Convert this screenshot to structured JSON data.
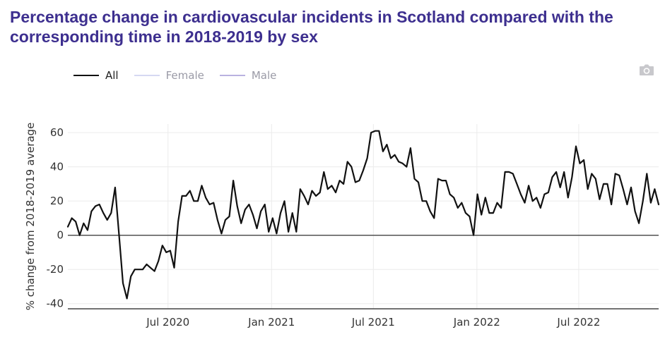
{
  "title": "Percentage change in cardiovascular incidents in Scotland compared with the corresponding time in 2018-2019 by sex",
  "legend": [
    {
      "label": "All",
      "color": "#111111",
      "active": true
    },
    {
      "label": "Female",
      "color": "#d6d8f2",
      "active": false
    },
    {
      "label": "Male",
      "color": "#b9b2e0",
      "active": false
    }
  ],
  "toolbar": {
    "camera_icon": "camera-icon"
  },
  "chart_data": {
    "type": "line",
    "title": "Percentage change in cardiovascular incidents in Scotland compared with the corresponding time in 2018-2019 by sex",
    "ylabel": "% change from 2018-2019 average",
    "xlabel": "",
    "ylim": [
      -43,
      65
    ],
    "xlim": [
      "2020-01-05",
      "2022-11-20"
    ],
    "grid": true,
    "legend_position": "top-left",
    "x_ticks": [
      {
        "date": "2020-07-01",
        "label": "Jul 2020"
      },
      {
        "date": "2021-01-01",
        "label": "Jan 2021"
      },
      {
        "date": "2021-07-01",
        "label": "Jul 2021"
      },
      {
        "date": "2022-01-01",
        "label": "Jan 2022"
      },
      {
        "date": "2022-07-01",
        "label": "Jul 2022"
      }
    ],
    "y_ticks": [
      -40,
      -20,
      0,
      20,
      40,
      60
    ],
    "series": [
      {
        "name": "All",
        "color": "#111111",
        "points": [
          [
            "2020-01-05",
            5
          ],
          [
            "2020-01-12",
            10
          ],
          [
            "2020-01-19",
            8
          ],
          [
            "2020-01-26",
            0
          ],
          [
            "2020-02-02",
            7
          ],
          [
            "2020-02-09",
            3
          ],
          [
            "2020-02-16",
            14
          ],
          [
            "2020-02-23",
            17
          ],
          [
            "2020-03-01",
            18
          ],
          [
            "2020-03-08",
            13
          ],
          [
            "2020-03-15",
            9
          ],
          [
            "2020-03-22",
            13
          ],
          [
            "2020-03-29",
            28
          ],
          [
            "2020-04-05",
            0
          ],
          [
            "2020-04-12",
            -28
          ],
          [
            "2020-04-19",
            -37
          ],
          [
            "2020-04-26",
            -24
          ],
          [
            "2020-05-03",
            -20
          ],
          [
            "2020-05-10",
            -20
          ],
          [
            "2020-05-17",
            -20
          ],
          [
            "2020-05-24",
            -17
          ],
          [
            "2020-05-31",
            -19
          ],
          [
            "2020-06-07",
            -21
          ],
          [
            "2020-06-14",
            -15
          ],
          [
            "2020-06-21",
            -6
          ],
          [
            "2020-06-28",
            -10
          ],
          [
            "2020-07-05",
            -9
          ],
          [
            "2020-07-12",
            -19
          ],
          [
            "2020-07-19",
            8
          ],
          [
            "2020-07-26",
            23
          ],
          [
            "2020-08-02",
            23
          ],
          [
            "2020-08-09",
            26
          ],
          [
            "2020-08-16",
            20
          ],
          [
            "2020-08-23",
            20
          ],
          [
            "2020-08-30",
            29
          ],
          [
            "2020-09-06",
            22
          ],
          [
            "2020-09-13",
            18
          ],
          [
            "2020-09-20",
            19
          ],
          [
            "2020-09-27",
            9
          ],
          [
            "2020-10-04",
            1
          ],
          [
            "2020-10-11",
            9
          ],
          [
            "2020-10-18",
            11
          ],
          [
            "2020-10-25",
            32
          ],
          [
            "2020-11-01",
            17
          ],
          [
            "2020-11-08",
            7
          ],
          [
            "2020-11-15",
            15
          ],
          [
            "2020-11-22",
            18
          ],
          [
            "2020-11-29",
            12
          ],
          [
            "2020-12-06",
            4
          ],
          [
            "2020-12-13",
            14
          ],
          [
            "2020-12-20",
            18
          ],
          [
            "2020-12-27",
            2
          ],
          [
            "2021-01-03",
            10
          ],
          [
            "2021-01-10",
            1
          ],
          [
            "2021-01-17",
            13
          ],
          [
            "2021-01-24",
            20
          ],
          [
            "2021-01-31",
            2
          ],
          [
            "2021-02-07",
            13
          ],
          [
            "2021-02-14",
            2
          ],
          [
            "2021-02-21",
            27
          ],
          [
            "2021-02-28",
            23
          ],
          [
            "2021-03-07",
            18
          ],
          [
            "2021-03-14",
            26
          ],
          [
            "2021-03-21",
            23
          ],
          [
            "2021-03-28",
            25
          ],
          [
            "2021-04-04",
            37
          ],
          [
            "2021-04-11",
            27
          ],
          [
            "2021-04-18",
            29
          ],
          [
            "2021-04-25",
            25
          ],
          [
            "2021-05-02",
            32
          ],
          [
            "2021-05-09",
            30
          ],
          [
            "2021-05-16",
            43
          ],
          [
            "2021-05-23",
            40
          ],
          [
            "2021-05-30",
            31
          ],
          [
            "2021-06-06",
            32
          ],
          [
            "2021-06-13",
            38
          ],
          [
            "2021-06-20",
            45
          ],
          [
            "2021-06-27",
            60
          ],
          [
            "2021-07-04",
            61
          ],
          [
            "2021-07-11",
            61
          ],
          [
            "2021-07-18",
            49
          ],
          [
            "2021-07-25",
            53
          ],
          [
            "2021-08-01",
            45
          ],
          [
            "2021-08-08",
            47
          ],
          [
            "2021-08-15",
            43
          ],
          [
            "2021-08-22",
            42
          ],
          [
            "2021-08-29",
            40
          ],
          [
            "2021-09-05",
            51
          ],
          [
            "2021-09-12",
            33
          ],
          [
            "2021-09-19",
            31
          ],
          [
            "2021-09-26",
            20
          ],
          [
            "2021-10-03",
            20
          ],
          [
            "2021-10-10",
            14
          ],
          [
            "2021-10-17",
            10
          ],
          [
            "2021-10-24",
            33
          ],
          [
            "2021-10-31",
            32
          ],
          [
            "2021-11-07",
            32
          ],
          [
            "2021-11-14",
            24
          ],
          [
            "2021-11-21",
            22
          ],
          [
            "2021-11-28",
            16
          ],
          [
            "2021-12-05",
            19
          ],
          [
            "2021-12-12",
            13
          ],
          [
            "2021-12-19",
            11
          ],
          [
            "2021-12-26",
            0
          ],
          [
            "2022-01-02",
            24
          ],
          [
            "2022-01-09",
            12
          ],
          [
            "2022-01-16",
            22
          ],
          [
            "2022-01-23",
            13
          ],
          [
            "2022-01-30",
            13
          ],
          [
            "2022-02-06",
            19
          ],
          [
            "2022-02-13",
            16
          ],
          [
            "2022-02-20",
            37
          ],
          [
            "2022-02-27",
            37
          ],
          [
            "2022-03-06",
            36
          ],
          [
            "2022-03-13",
            30
          ],
          [
            "2022-03-20",
            24
          ],
          [
            "2022-03-27",
            19
          ],
          [
            "2022-04-03",
            29
          ],
          [
            "2022-04-10",
            20
          ],
          [
            "2022-04-17",
            22
          ],
          [
            "2022-04-24",
            16
          ],
          [
            "2022-05-01",
            24
          ],
          [
            "2022-05-08",
            25
          ],
          [
            "2022-05-15",
            34
          ],
          [
            "2022-05-22",
            37
          ],
          [
            "2022-05-29",
            28
          ],
          [
            "2022-06-05",
            37
          ],
          [
            "2022-06-12",
            22
          ],
          [
            "2022-06-19",
            34
          ],
          [
            "2022-06-26",
            52
          ],
          [
            "2022-07-03",
            42
          ],
          [
            "2022-07-10",
            44
          ],
          [
            "2022-07-17",
            27
          ],
          [
            "2022-07-24",
            36
          ],
          [
            "2022-07-31",
            33
          ],
          [
            "2022-08-07",
            21
          ],
          [
            "2022-08-14",
            30
          ],
          [
            "2022-08-21",
            30
          ],
          [
            "2022-08-28",
            18
          ],
          [
            "2022-09-04",
            36
          ],
          [
            "2022-09-11",
            35
          ],
          [
            "2022-09-18",
            27
          ],
          [
            "2022-09-25",
            18
          ],
          [
            "2022-10-02",
            28
          ],
          [
            "2022-10-09",
            14
          ],
          [
            "2022-10-16",
            7
          ],
          [
            "2022-10-23",
            20
          ],
          [
            "2022-10-30",
            36
          ],
          [
            "2022-11-06",
            19
          ],
          [
            "2022-11-13",
            27
          ],
          [
            "2022-11-20",
            18
          ]
        ]
      }
    ]
  }
}
